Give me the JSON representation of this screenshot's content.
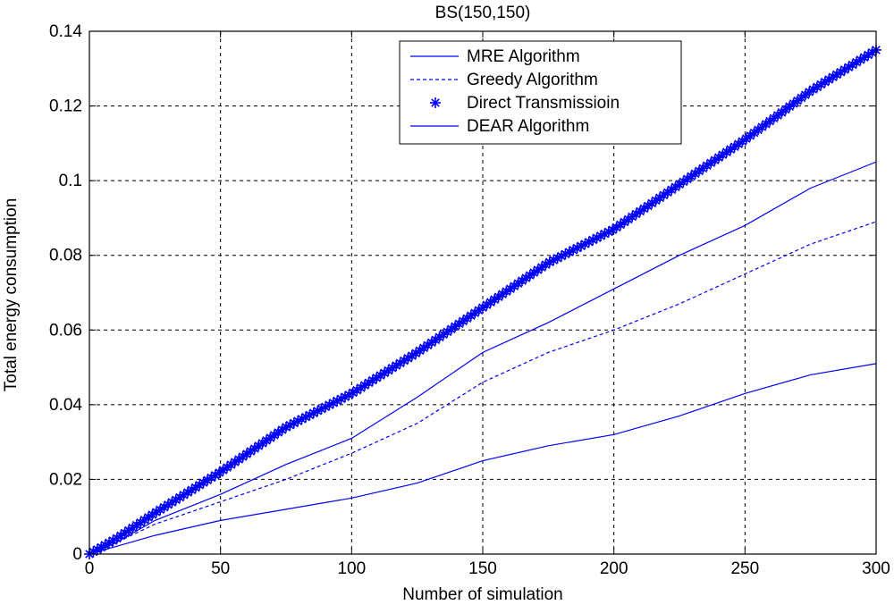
{
  "chart_data": {
    "type": "line",
    "title": "BS(150,150)",
    "xlabel": "Number of simulation",
    "ylabel": "Total energy consumption",
    "xlim": [
      0,
      300
    ],
    "ylim": [
      0,
      0.14
    ],
    "xticks": [
      0,
      50,
      100,
      150,
      200,
      250,
      300
    ],
    "xtick_labels": [
      "0",
      "50",
      "100",
      "150",
      "200",
      "250",
      "300"
    ],
    "yticks": [
      0,
      0.02,
      0.04,
      0.06,
      0.08,
      0.1,
      0.12,
      0.14
    ],
    "ytick_labels": [
      "0",
      "0.02",
      "0.04",
      "0.06",
      "0.08",
      "0.1",
      "0.12",
      "0.14"
    ],
    "grid": true,
    "legend_position": "top-right",
    "series": [
      {
        "name": "MRE Algorithm",
        "style": "solid",
        "color": "#0000ff",
        "x": [
          0,
          10,
          25,
          50,
          75,
          100,
          125,
          150,
          175,
          200,
          225,
          250,
          275,
          300
        ],
        "y": [
          0,
          0.003,
          0.009,
          0.016,
          0.024,
          0.031,
          0.042,
          0.054,
          0.062,
          0.071,
          0.08,
          0.088,
          0.098,
          0.105
        ]
      },
      {
        "name": "Greedy Algorithm",
        "style": "dashed",
        "color": "#0000ff",
        "x": [
          0,
          10,
          25,
          50,
          75,
          100,
          125,
          150,
          175,
          200,
          225,
          250,
          275,
          300
        ],
        "y": [
          0,
          0.003,
          0.008,
          0.014,
          0.02,
          0.027,
          0.035,
          0.046,
          0.054,
          0.06,
          0.067,
          0.075,
          0.083,
          0.089
        ]
      },
      {
        "name": "Direct Transmissioin",
        "style": "star-markers",
        "color": "#0000ff",
        "x": [
          0,
          10,
          25,
          50,
          75,
          100,
          125,
          150,
          175,
          200,
          225,
          250,
          275,
          300
        ],
        "y": [
          0,
          0.004,
          0.011,
          0.022,
          0.034,
          0.043,
          0.054,
          0.066,
          0.078,
          0.087,
          0.099,
          0.111,
          0.124,
          0.135
        ]
      },
      {
        "name": "DEAR Algorithm",
        "style": "solid",
        "color": "#0000ff",
        "x": [
          0,
          10,
          25,
          50,
          75,
          100,
          125,
          150,
          175,
          200,
          225,
          250,
          275,
          300
        ],
        "y": [
          0,
          0.002,
          0.005,
          0.009,
          0.012,
          0.015,
          0.019,
          0.025,
          0.029,
          0.032,
          0.037,
          0.043,
          0.048,
          0.051
        ]
      }
    ]
  }
}
